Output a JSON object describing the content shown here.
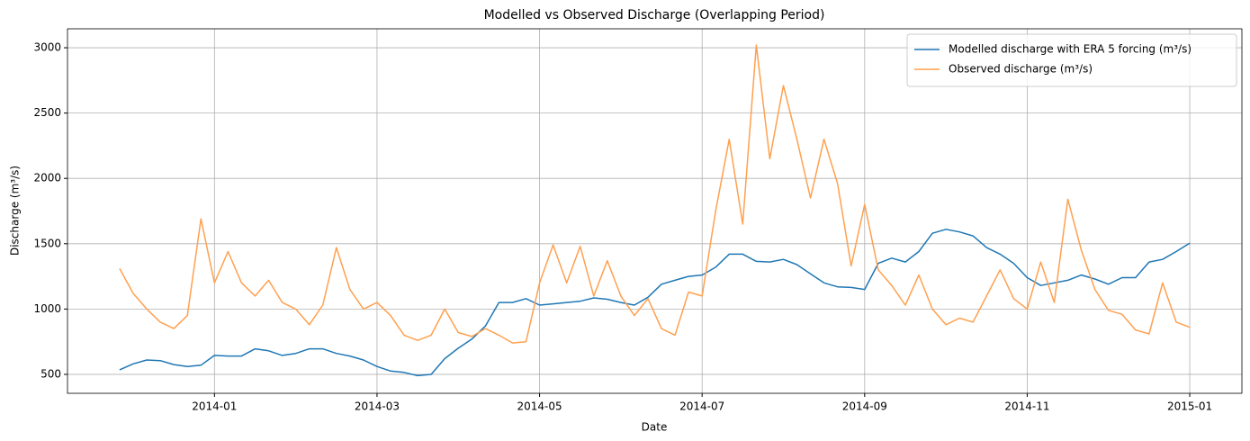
{
  "chart_data": {
    "type": "line",
    "title": "Modelled vs Observed Discharge (Overlapping Period)",
    "x_label": "Date",
    "y_label": "Discharge (m³/s)",
    "categories": [
      null,
      null,
      null,
      null,
      null,
      null,
      null,
      "2014-01",
      null,
      null,
      null,
      null,
      null,
      null,
      null,
      null,
      null,
      null,
      null,
      "2014-03",
      null,
      null,
      null,
      null,
      null,
      null,
      null,
      null,
      null,
      null,
      null,
      "2014-05",
      null,
      null,
      null,
      null,
      null,
      null,
      null,
      null,
      null,
      null,
      null,
      "2014-07",
      null,
      null,
      null,
      null,
      null,
      null,
      null,
      null,
      null,
      null,
      null,
      "2014-09",
      null,
      null,
      null,
      null,
      null,
      null,
      null,
      null,
      null,
      null,
      null,
      "2014-11",
      null,
      null,
      null,
      null,
      null,
      null,
      null,
      null,
      null,
      null,
      null,
      "2015-01"
    ],
    "series": [
      {
        "name": "Modelled discharge with ERA 5 forcing (m³/s)",
        "color": "#1f77b4",
        "values": [
          535,
          580,
          610,
          605,
          575,
          560,
          570,
          645,
          640,
          640,
          695,
          680,
          645,
          660,
          695,
          695,
          660,
          640,
          610,
          560,
          525,
          515,
          490,
          500,
          620,
          700,
          770,
          870,
          1050,
          1050,
          1080,
          1030,
          1040,
          1050,
          1060,
          1085,
          1075,
          1050,
          1030,
          1090,
          1190,
          1220,
          1250,
          1260,
          1320,
          1420,
          1420,
          1365,
          1360,
          1380,
          1340,
          1270,
          1200,
          1170,
          1165,
          1150,
          1350,
          1390,
          1360,
          1440,
          1580,
          1610,
          1590,
          1560,
          1470,
          1420,
          1350,
          1240,
          1180,
          1200,
          1220,
          1260,
          1230,
          1190,
          1240,
          1240,
          1360,
          1380,
          1440,
          1505
        ]
      },
      {
        "name": "Observed discharge (m³/s)",
        "color": "#ffa04f",
        "values": [
          1310,
          1120,
          1000,
          900,
          850,
          950,
          1690,
          1200,
          1440,
          1200,
          1100,
          1220,
          1050,
          1000,
          880,
          1030,
          1470,
          1150,
          1000,
          1050,
          950,
          800,
          760,
          800,
          1000,
          820,
          790,
          850,
          800,
          740,
          750,
          1200,
          1490,
          1200,
          1480,
          1100,
          1370,
          1100,
          950,
          1080,
          850,
          800,
          1130,
          1100,
          1750,
          2300,
          1650,
          3020,
          2150,
          2710,
          2300,
          1850,
          2300,
          1960,
          1330,
          1800,
          1300,
          1180,
          1030,
          1260,
          1000,
          880,
          930,
          900,
          1100,
          1300,
          1080,
          1000,
          1360,
          1050,
          1840,
          1450,
          1150,
          990,
          960,
          840,
          810,
          1200,
          900,
          860
        ]
      }
    ],
    "ylim": [
      355,
      3145
    ],
    "yticks": [
      500,
      1000,
      1500,
      2000,
      2500,
      3000
    ],
    "grid": true,
    "legend": "upper right"
  }
}
